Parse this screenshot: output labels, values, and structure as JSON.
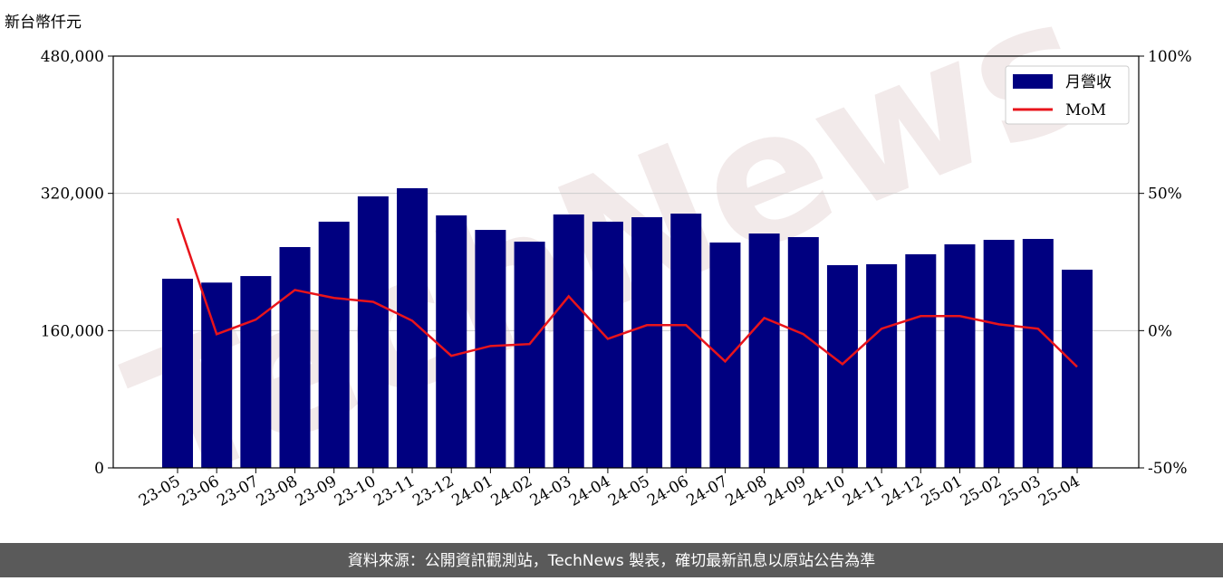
{
  "chart_data": {
    "type": "bar",
    "y_label": "新台幣仟元",
    "watermark": "TechNews",
    "footer": "資料來源：公開資訊觀測站，TechNews 製表，確切最新訊息以原站公告為準",
    "categories": [
      "23-05",
      "23-06",
      "23-07",
      "23-08",
      "23-09",
      "23-10",
      "23-11",
      "23-12",
      "24-01",
      "24-02",
      "24-03",
      "24-04",
      "24-05",
      "24-06",
      "24-07",
      "24-08",
      "24-09",
      "24-10",
      "24-11",
      "24-12",
      "25-01",
      "25-02",
      "25-03",
      "25-04"
    ],
    "series": [
      {
        "name": "月營收",
        "type": "bar",
        "color": "#000080",
        "axis": "y",
        "values": [
          220500,
          216000,
          223600,
          257400,
          287000,
          316500,
          326000,
          294300,
          277400,
          263700,
          295400,
          287000,
          292200,
          296400,
          262700,
          273200,
          269000,
          236300,
          237400,
          249000,
          260600,
          265800,
          266900,
          231000
        ]
      },
      {
        "name": "MoM",
        "type": "line",
        "color": "#e8141b",
        "axis": "y2",
        "values": [
          40.9,
          -1.3,
          4.0,
          14.8,
          11.9,
          10.5,
          3.6,
          -9.2,
          -5.6,
          -4.9,
          12.5,
          -3.0,
          2.0,
          2.0,
          -11.2,
          4.6,
          -1.3,
          -12.2,
          0.7,
          5.3,
          5.3,
          2.3,
          0.7,
          -13.2
        ]
      }
    ],
    "ylim": [
      0,
      480000
    ],
    "yticks": [
      0,
      {
        "value": 160000,
        "label": "160,000"
      },
      {
        "value": 320000,
        "label": "320,000"
      },
      {
        "value": 480000,
        "label": "480,000"
      }
    ],
    "y2lim": [
      -50,
      100
    ],
    "y2ticks": [
      {
        "value": -50,
        "label": "-50%"
      },
      {
        "value": 0,
        "label": "0%"
      },
      {
        "value": 50,
        "label": "50%"
      },
      {
        "value": 100,
        "label": "100%"
      }
    ],
    "grid": true,
    "legend": "upper right"
  }
}
